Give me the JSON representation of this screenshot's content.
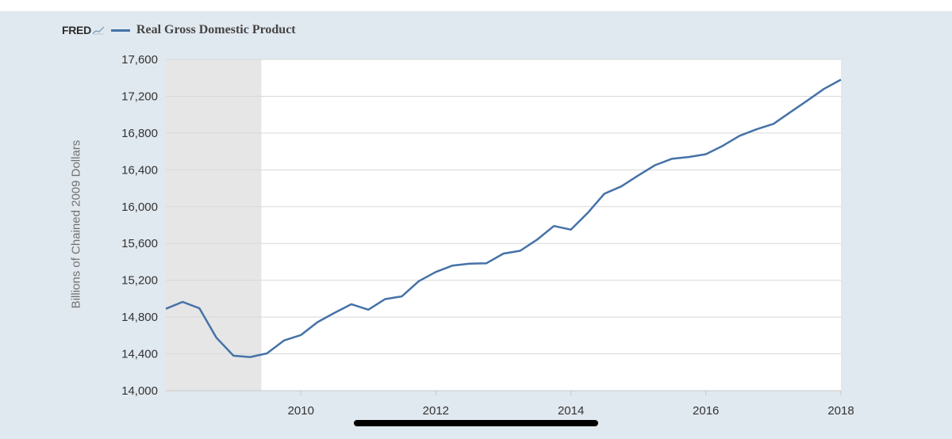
{
  "header": {
    "logo_text": "FRED",
    "legend_label": "Real Gross Domestic Product"
  },
  "colors": {
    "series": "#4572a7",
    "recession": "#e6e6e6",
    "grid": "#d8d8d8",
    "background": "#e1e9f0",
    "plot": "#ffffff"
  },
  "chart_data": {
    "type": "line",
    "title": "",
    "xlabel": "",
    "ylabel": "Billions of Chained 2009 Dollars",
    "ylim": [
      14000,
      17600
    ],
    "xlim": [
      "2008-01-01",
      "2018-01-01"
    ],
    "yticks": [
      14000,
      14400,
      14800,
      15200,
      15600,
      16000,
      16400,
      16800,
      17200,
      17600
    ],
    "ytick_labels": [
      "14,000",
      "14,400",
      "14,800",
      "15,200",
      "15,600",
      "16,000",
      "16,400",
      "16,800",
      "17,200",
      "17,600"
    ],
    "xticks": [
      "2010-01-01",
      "2012-01-01",
      "2014-01-01",
      "2016-01-01",
      "2018-01-01"
    ],
    "xtick_labels": [
      "2010",
      "2012",
      "2014",
      "2016",
      "2018"
    ],
    "grid": true,
    "legend": "top-left",
    "recession": {
      "start": "2008-01-01",
      "end": "2009-06-01"
    },
    "series": [
      {
        "name": "Real Gross Domestic Product",
        "color": "#4572a7",
        "x": [
          "2008-01-01",
          "2008-04-01",
          "2008-07-01",
          "2008-10-01",
          "2009-01-01",
          "2009-04-01",
          "2009-07-01",
          "2009-10-01",
          "2010-01-01",
          "2010-04-01",
          "2010-07-01",
          "2010-10-01",
          "2011-01-01",
          "2011-04-01",
          "2011-07-01",
          "2011-10-01",
          "2012-01-01",
          "2012-04-01",
          "2012-07-01",
          "2012-10-01",
          "2013-01-01",
          "2013-04-01",
          "2013-07-01",
          "2013-10-01",
          "2014-01-01",
          "2014-04-01",
          "2014-07-01",
          "2014-10-01",
          "2015-01-01",
          "2015-04-01",
          "2015-07-01",
          "2015-10-01",
          "2016-01-01",
          "2016-04-01",
          "2016-07-01",
          "2016-10-01",
          "2017-01-01",
          "2017-04-01",
          "2017-07-01",
          "2017-10-01",
          "2018-01-01"
        ],
        "y": [
          14890,
          14965,
          14895,
          14575,
          14380,
          14365,
          14405,
          14545,
          14605,
          14745,
          14845,
          14940,
          14880,
          14995,
          15025,
          15190,
          15290,
          15360,
          15380,
          15385,
          15490,
          15520,
          15640,
          15790,
          15750,
          15930,
          16140,
          16220,
          16340,
          16450,
          16520,
          16540,
          16570,
          16660,
          16770,
          16840,
          16900,
          17025,
          17150,
          17280,
          17380
        ]
      }
    ]
  }
}
